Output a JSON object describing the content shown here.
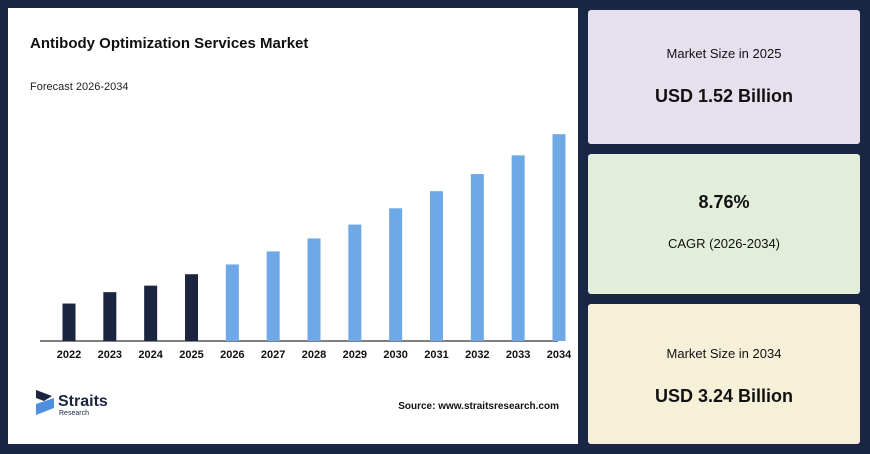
{
  "chart_data": {
    "type": "bar",
    "title": "Antibody Optimization Services Market",
    "subtitle": "Forecast 2026-2034",
    "categories": [
      "2022",
      "2023",
      "2024",
      "2025",
      "2026",
      "2027",
      "2028",
      "2029",
      "2030",
      "2031",
      "2032",
      "2033",
      "2034"
    ],
    "values": [
      1.16,
      1.3,
      1.38,
      1.52,
      1.64,
      1.8,
      1.96,
      2.13,
      2.33,
      2.54,
      2.75,
      2.98,
      3.24
    ],
    "bar_colors": [
      "#1b2540",
      "#1b2540",
      "#1b2540",
      "#1b2540",
      "#6ea8e6",
      "#6ea8e6",
      "#6ea8e6",
      "#6ea8e6",
      "#6ea8e6",
      "#6ea8e6",
      "#6ea8e6",
      "#6ea8e6",
      "#6ea8e6"
    ],
    "ylim": [
      0.7,
      3.5
    ]
  },
  "source": "Source: www.straitsresearch.com",
  "logo": {
    "name": "Straits",
    "sub": "Research"
  },
  "cards": [
    {
      "label": "Market Size in 2025",
      "value": "USD 1.52 Billion"
    },
    {
      "label": "CAGR (2026-2034)",
      "value": "8.76%"
    },
    {
      "label": "Market Size in 2034",
      "value": "USD 3.24 Billion"
    }
  ]
}
